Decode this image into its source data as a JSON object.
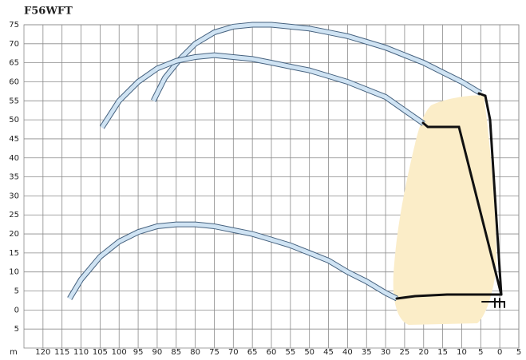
{
  "chart_data": {
    "type": "line",
    "title": "F56WFT",
    "x_label": "m",
    "xlim": [
      125,
      -5
    ],
    "ylim": [
      -10,
      75
    ],
    "xticks": [
      120,
      115,
      110,
      105,
      100,
      95,
      90,
      85,
      80,
      75,
      70,
      65,
      60,
      55,
      50,
      45,
      40,
      35,
      30,
      25,
      20,
      15,
      10,
      5,
      0,
      {
        "value": -5,
        "label": "5"
      }
    ],
    "yticks": [
      75,
      70,
      65,
      60,
      55,
      50,
      45,
      40,
      35,
      30,
      25,
      20,
      15,
      10,
      5,
      0,
      {
        "value": -5,
        "label": "5"
      }
    ],
    "grid": true,
    "series": [
      {
        "color": "#cfe3f3",
        "x": [
          91,
          88,
          84,
          80,
          75,
          70,
          65,
          60,
          55,
          50,
          45,
          40,
          35,
          30,
          25,
          20,
          15,
          10,
          5
        ],
        "values": [
          55,
          61,
          66,
          70,
          73,
          74.5,
          75,
          75,
          74.5,
          74,
          73,
          72,
          70.5,
          69,
          67,
          65,
          62.5,
          60,
          57
        ]
      },
      {
        "color": "#cfe3f3",
        "x": [
          104.5,
          100,
          95,
          90,
          85,
          80,
          75,
          70,
          65,
          60,
          55,
          50,
          45,
          40,
          35,
          30,
          25,
          20
        ],
        "values": [
          48,
          55,
          60,
          63.5,
          65.5,
          66.5,
          67,
          66.5,
          66,
          65,
          64,
          63,
          61.5,
          60,
          58,
          56,
          52.5,
          49
        ]
      },
      {
        "color": "#cfe3f3",
        "x": [
          113,
          110,
          105,
          100,
          95,
          90,
          85,
          80,
          75,
          70,
          65,
          60,
          55,
          50,
          45,
          40,
          35,
          30,
          27
        ],
        "values": [
          3,
          8,
          14,
          18,
          20.5,
          22,
          22.5,
          22.5,
          22,
          21,
          20,
          18.5,
          17,
          15,
          13,
          10,
          7.5,
          4.5,
          3
        ]
      }
    ]
  }
}
